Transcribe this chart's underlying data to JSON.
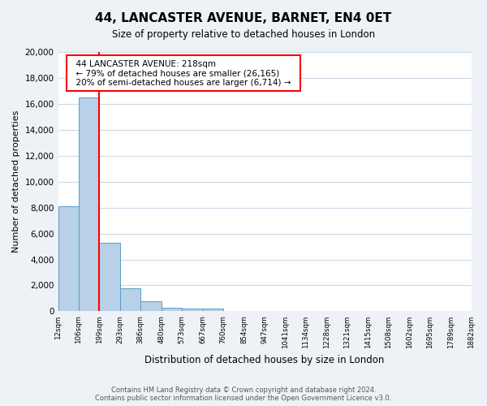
{
  "title": "44, LANCASTER AVENUE, BARNET, EN4 0ET",
  "subtitle": "Size of property relative to detached houses in London",
  "bar_values": [
    8100,
    16500,
    5300,
    1800,
    800,
    300,
    200,
    200,
    0,
    0,
    0,
    0,
    0,
    0,
    0,
    0,
    0,
    0,
    0,
    0
  ],
  "bin_labels": [
    "12sqm",
    "106sqm",
    "199sqm",
    "293sqm",
    "386sqm",
    "480sqm",
    "573sqm",
    "667sqm",
    "760sqm",
    "854sqm",
    "947sqm",
    "1041sqm",
    "1134sqm",
    "1228sqm",
    "1321sqm",
    "1415sqm",
    "1508sqm",
    "1602sqm",
    "1695sqm",
    "1789sqm",
    "1882sqm"
  ],
  "bar_color": "#b8d0e8",
  "bar_edge_color": "#5a9dc8",
  "vline_x": 2,
  "vline_color": "red",
  "ylim": [
    0,
    20000
  ],
  "yticks": [
    0,
    2000,
    4000,
    6000,
    8000,
    10000,
    12000,
    14000,
    16000,
    18000,
    20000
  ],
  "ylabel": "Number of detached properties",
  "xlabel": "Distribution of detached houses by size in London",
  "annotation_title": "44 LANCASTER AVENUE: 218sqm",
  "annotation_line1": "← 79% of detached houses are smaller (26,165)",
  "annotation_line2": "20% of semi-detached houses are larger (6,714) →",
  "annotation_box_color": "#ffffff",
  "annotation_box_edge": "red",
  "footer_line1": "Contains HM Land Registry data © Crown copyright and database right 2024.",
  "footer_line2": "Contains public sector information licensed under the Open Government Licence v3.0.",
  "background_color": "#eef2f7",
  "plot_background": "#ffffff",
  "grid_color": "#ccd8e8"
}
